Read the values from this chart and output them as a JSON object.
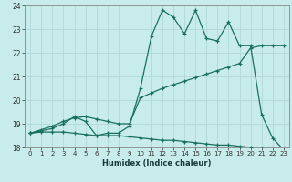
{
  "xlabel": "Humidex (Indice chaleur)",
  "background_color": "#c8ecec",
  "grid_color": "#b0d8d8",
  "line_color": "#1a7060",
  "xlim": [
    -0.5,
    23.5
  ],
  "ylim": [
    18,
    24
  ],
  "yticks": [
    18,
    19,
    20,
    21,
    22,
    23,
    24
  ],
  "xticks": [
    0,
    1,
    2,
    3,
    4,
    5,
    6,
    7,
    8,
    9,
    10,
    11,
    12,
    13,
    14,
    15,
    16,
    17,
    18,
    19,
    20,
    21,
    22,
    23
  ],
  "series1": [
    18.6,
    18.7,
    18.8,
    19.0,
    19.3,
    19.1,
    18.5,
    18.6,
    18.6,
    18.9,
    20.5,
    22.7,
    23.8,
    23.5,
    22.8,
    23.8,
    22.6,
    22.5,
    23.3,
    22.3,
    22.3,
    19.4,
    18.4,
    17.9
  ],
  "series2": [
    18.6,
    18.75,
    18.9,
    19.1,
    19.25,
    19.3,
    19.2,
    19.1,
    19.0,
    19.0,
    20.1,
    20.3,
    20.5,
    20.65,
    20.8,
    20.95,
    21.1,
    21.25,
    21.4,
    21.55,
    22.2,
    22.3,
    22.3,
    22.3
  ],
  "series3": [
    18.6,
    18.65,
    18.65,
    18.65,
    18.6,
    18.55,
    18.5,
    18.5,
    18.5,
    18.45,
    18.4,
    18.35,
    18.3,
    18.3,
    18.25,
    18.2,
    18.15,
    18.1,
    18.1,
    18.05,
    18.0,
    17.95,
    17.9,
    17.85
  ]
}
